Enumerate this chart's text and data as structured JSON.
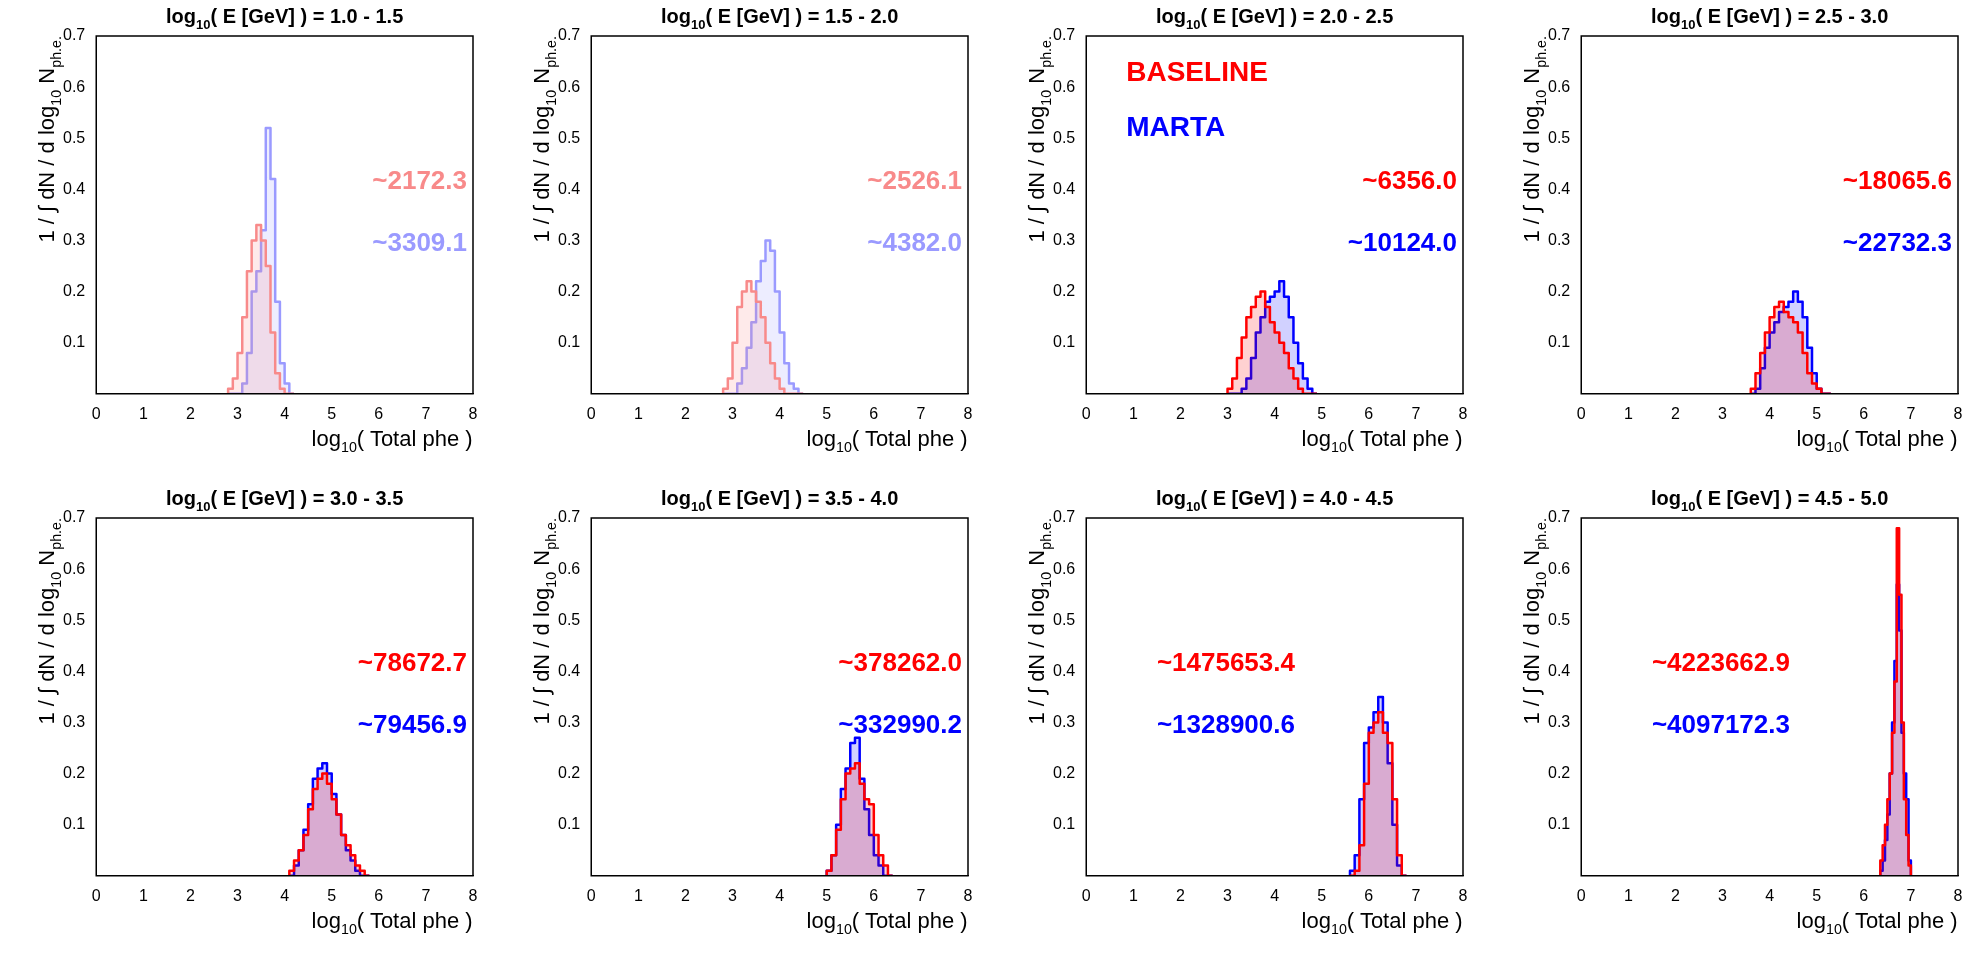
{
  "chart_data": [
    {
      "type": "histogram",
      "title": "log$_{10}$( E [GeV] ) = 1.0 - 1.5",
      "xlabel": "log$_{10}$( Total phe )",
      "ylabel": "1 / ∫ dN / d log$_{10}$ N$_{ph.e.}$",
      "xlim": [
        0,
        8
      ],
      "xticks": [
        0,
        1,
        2,
        3,
        4,
        5,
        6,
        7,
        8
      ],
      "ylim": [
        0,
        0.7
      ],
      "yticks": [
        0.1,
        0.2,
        0.3,
        0.4,
        0.5,
        0.6,
        0.7
      ],
      "grid": false,
      "legend": false,
      "bins": [
        2.8,
        2.9,
        3.0,
        3.1,
        3.2,
        3.3,
        3.4,
        3.5,
        3.6,
        3.7,
        3.8,
        3.9,
        4.0,
        4.1,
        4.2
      ],
      "series": [
        {
          "color": "#f88a8a",
          "values": [
            0.01,
            0.03,
            0.08,
            0.15,
            0.24,
            0.3,
            0.33,
            0.3,
            0.25,
            0.12,
            0.04,
            0.01,
            0,
            0
          ]
        },
        {
          "color": "#9a9aff",
          "values": [
            0,
            0,
            0,
            0.02,
            0.08,
            0.2,
            0.24,
            0.32,
            0.52,
            0.42,
            0.18,
            0.06,
            0.02,
            0
          ]
        }
      ],
      "annotations": [
        "~2172.3",
        "~3309.1"
      ]
    },
    {
      "type": "histogram",
      "title": "log$_{10}$( E [GeV] ) = 1.5 - 2.0",
      "xlabel": "log$_{10}$( Total phe )",
      "ylabel": "1 / ∫ dN / d log$_{10}$ N$_{ph.e.}$",
      "xlim": [
        0,
        8
      ],
      "xticks": [
        0,
        1,
        2,
        3,
        4,
        5,
        6,
        7,
        8
      ],
      "ylim": [
        0,
        0.7
      ],
      "yticks": [
        0.1,
        0.2,
        0.3,
        0.4,
        0.5,
        0.6,
        0.7
      ],
      "grid": false,
      "legend": false,
      "bins": [
        2.8,
        2.9,
        3.0,
        3.1,
        3.2,
        3.3,
        3.4,
        3.5,
        3.6,
        3.7,
        3.8,
        3.9,
        4.0,
        4.1,
        4.2,
        4.3,
        4.4,
        4.5
      ],
      "series": [
        {
          "color": "#f88a8a",
          "values": [
            0.01,
            0.03,
            0.1,
            0.17,
            0.2,
            0.22,
            0.2,
            0.18,
            0.15,
            0.1,
            0.06,
            0.03,
            0.01,
            0,
            0,
            0,
            0
          ]
        },
        {
          "color": "#9a9aff",
          "values": [
            0,
            0,
            0,
            0.02,
            0.05,
            0.09,
            0.14,
            0.22,
            0.26,
            0.3,
            0.28,
            0.2,
            0.12,
            0.06,
            0.02,
            0.01,
            0
          ]
        }
      ],
      "annotations": [
        "~2526.1",
        "~4382.0"
      ]
    },
    {
      "type": "histogram",
      "title": "log$_{10}$( E [GeV] ) = 2.0 - 2.5",
      "xlabel": "log$_{10}$( Total phe )",
      "ylabel": "1 / ∫ dN / d log$_{10}$ N$_{ph.e.}$",
      "xlim": [
        0,
        8
      ],
      "xticks": [
        0,
        1,
        2,
        3,
        4,
        5,
        6,
        7,
        8
      ],
      "ylim": [
        0,
        0.7
      ],
      "yticks": [
        0.1,
        0.2,
        0.3,
        0.4,
        0.5,
        0.6,
        0.7
      ],
      "grid": false,
      "legend": "top left",
      "bins": [
        3.0,
        3.1,
        3.2,
        3.3,
        3.4,
        3.5,
        3.6,
        3.7,
        3.8,
        3.9,
        4.0,
        4.1,
        4.2,
        4.3,
        4.4,
        4.5,
        4.6,
        4.7,
        4.8,
        4.9
      ],
      "series": [
        {
          "name": "BASELINE",
          "color": "#ff0000",
          "values": [
            0.01,
            0.03,
            0.07,
            0.11,
            0.15,
            0.17,
            0.19,
            0.2,
            0.17,
            0.14,
            0.12,
            0.1,
            0.08,
            0.05,
            0.03,
            0.01,
            0,
            0,
            0
          ]
        },
        {
          "name": "MARTA",
          "color": "#0000ff",
          "values": [
            0,
            0,
            0,
            0.01,
            0.03,
            0.07,
            0.12,
            0.15,
            0.18,
            0.19,
            0.2,
            0.22,
            0.19,
            0.15,
            0.1,
            0.06,
            0.03,
            0.01,
            0
          ]
        }
      ],
      "annotations": [
        "~6356.0",
        "~10124.0"
      ]
    },
    {
      "type": "histogram",
      "title": "log$_{10}$( E [GeV] ) = 2.5 - 3.0",
      "xlabel": "log$_{10}$( Total phe )",
      "ylabel": "1 / ∫ dN / d log$_{10}$ N$_{ph.e.}$",
      "xlim": [
        0,
        8
      ],
      "xticks": [
        0,
        1,
        2,
        3,
        4,
        5,
        6,
        7,
        8
      ],
      "ylim": [
        0,
        0.7
      ],
      "yticks": [
        0.1,
        0.2,
        0.3,
        0.4,
        0.5,
        0.6,
        0.7
      ],
      "grid": false,
      "legend": false,
      "bins": [
        3.6,
        3.7,
        3.8,
        3.9,
        4.0,
        4.1,
        4.2,
        4.3,
        4.4,
        4.5,
        4.6,
        4.7,
        4.8,
        4.9,
        5.0,
        5.1,
        5.2,
        5.3
      ],
      "series": [
        {
          "color": "#ff0000",
          "values": [
            0.01,
            0.04,
            0.08,
            0.12,
            0.15,
            0.17,
            0.18,
            0.16,
            0.15,
            0.14,
            0.12,
            0.08,
            0.04,
            0.02,
            0.01,
            0,
            0
          ]
        },
        {
          "color": "#0000ff",
          "values": [
            0,
            0.01,
            0.05,
            0.09,
            0.12,
            0.14,
            0.16,
            0.17,
            0.18,
            0.2,
            0.18,
            0.15,
            0.09,
            0.04,
            0.01,
            0,
            0
          ]
        }
      ],
      "annotations": [
        "~18065.6",
        "~22732.3"
      ]
    },
    {
      "type": "histogram",
      "title": "log$_{10}$( E [GeV] ) = 3.0 - 3.5",
      "xlabel": "log$_{10}$( Total phe )",
      "ylabel": "1 / ∫ dN / d log$_{10}$ N$_{ph.e.}$",
      "xlim": [
        0,
        8
      ],
      "xticks": [
        0,
        1,
        2,
        3,
        4,
        5,
        6,
        7,
        8
      ],
      "ylim": [
        0,
        0.7
      ],
      "yticks": [
        0.1,
        0.2,
        0.3,
        0.4,
        0.5,
        0.6,
        0.7
      ],
      "grid": false,
      "legend": false,
      "bins": [
        4.1,
        4.2,
        4.3,
        4.4,
        4.5,
        4.6,
        4.7,
        4.8,
        4.9,
        5.0,
        5.1,
        5.2,
        5.3,
        5.4,
        5.5,
        5.6,
        5.7,
        5.8
      ],
      "series": [
        {
          "color": "#ff0000",
          "values": [
            0.01,
            0.03,
            0.05,
            0.08,
            0.13,
            0.17,
            0.19,
            0.2,
            0.18,
            0.15,
            0.12,
            0.08,
            0.06,
            0.04,
            0.02,
            0.01,
            0
          ]
        },
        {
          "color": "#0000ff",
          "values": [
            0,
            0.02,
            0.05,
            0.09,
            0.14,
            0.19,
            0.21,
            0.22,
            0.2,
            0.16,
            0.12,
            0.08,
            0.05,
            0.03,
            0.01,
            0,
            0
          ]
        }
      ],
      "annotations": [
        "~78672.7",
        "~79456.9"
      ]
    },
    {
      "type": "histogram",
      "title": "log$_{10}$( E [GeV] ) = 3.5 - 4.0",
      "xlabel": "log$_{10}$( Total phe )",
      "ylabel": "1 / ∫ dN / d log$_{10}$ N$_{ph.e.}$",
      "xlim": [
        0,
        8
      ],
      "xticks": [
        0,
        1,
        2,
        3,
        4,
        5,
        6,
        7,
        8
      ],
      "ylim": [
        0,
        0.7
      ],
      "yticks": [
        0.1,
        0.2,
        0.3,
        0.4,
        0.5,
        0.6,
        0.7
      ],
      "grid": false,
      "legend": false,
      "bins": [
        5.0,
        5.1,
        5.2,
        5.3,
        5.4,
        5.5,
        5.6,
        5.7,
        5.8,
        5.9,
        6.0,
        6.1,
        6.2,
        6.3,
        6.4
      ],
      "series": [
        {
          "color": "#ff0000",
          "values": [
            0.01,
            0.04,
            0.09,
            0.15,
            0.2,
            0.21,
            0.22,
            0.18,
            0.15,
            0.14,
            0.08,
            0.04,
            0.02,
            0
          ]
        },
        {
          "color": "#0000ff",
          "values": [
            0.01,
            0.04,
            0.1,
            0.17,
            0.21,
            0.26,
            0.27,
            0.19,
            0.13,
            0.08,
            0.04,
            0.02,
            0,
            0
          ]
        }
      ],
      "annotations": [
        "~378262.0",
        "~332990.2"
      ]
    },
    {
      "type": "histogram",
      "title": "log$_{10}$( E [GeV] ) = 4.0 - 4.5",
      "xlabel": "log$_{10}$( Total phe )",
      "ylabel": "1 / ∫ dN / d log$_{10}$ N$_{ph.e.}$",
      "xlim": [
        0,
        8
      ],
      "xticks": [
        0,
        1,
        2,
        3,
        4,
        5,
        6,
        7,
        8
      ],
      "ylim": [
        0,
        0.7
      ],
      "yticks": [
        0.1,
        0.2,
        0.3,
        0.4,
        0.5,
        0.6,
        0.7
      ],
      "grid": false,
      "legend": false,
      "bins": [
        5.6,
        5.7,
        5.8,
        5.9,
        6.0,
        6.1,
        6.2,
        6.3,
        6.4,
        6.5,
        6.6,
        6.7,
        6.8
      ],
      "series": [
        {
          "color": "#ff0000",
          "values": [
            0,
            0.01,
            0.06,
            0.18,
            0.28,
            0.3,
            0.32,
            0.28,
            0.26,
            0.15,
            0.04,
            0
          ]
        },
        {
          "color": "#0000ff",
          "values": [
            0.01,
            0.04,
            0.15,
            0.26,
            0.29,
            0.32,
            0.35,
            0.3,
            0.22,
            0.1,
            0.02,
            0
          ]
        }
      ],
      "annotations": [
        "~1475653.4",
        "~1328900.6"
      ]
    },
    {
      "type": "histogram",
      "title": "log$_{10}$( E [GeV] ) = 4.5 - 5.0",
      "xlabel": "log$_{10}$( Total phe )",
      "ylabel": "1 / ∫ dN / d log$_{10}$ N$_{ph.e.}$",
      "xlim": [
        0,
        8
      ],
      "xticks": [
        0,
        1,
        2,
        3,
        4,
        5,
        6,
        7,
        8
      ],
      "ylim": [
        0,
        0.7
      ],
      "yticks": [
        0.1,
        0.2,
        0.3,
        0.4,
        0.5,
        0.6,
        0.7
      ],
      "grid": false,
      "legend": false,
      "bins": [
        6.35,
        6.4,
        6.45,
        6.5,
        6.55,
        6.6,
        6.65,
        6.7,
        6.75,
        6.8,
        6.85,
        6.9,
        6.95,
        7.0
      ],
      "series": [
        {
          "color": "#ff0000",
          "values": [
            0.03,
            0.06,
            0.1,
            0.15,
            0.2,
            0.28,
            0.38,
            0.68,
            0.55,
            0.3,
            0.15,
            0.08,
            0.02
          ]
        },
        {
          "color": "#0000ff",
          "values": [
            0.01,
            0.03,
            0.07,
            0.12,
            0.2,
            0.3,
            0.42,
            0.57,
            0.48,
            0.28,
            0.2,
            0.15,
            0.03
          ]
        }
      ],
      "annotations": [
        "~4223662.9",
        "~4097172.3"
      ]
    }
  ]
}
